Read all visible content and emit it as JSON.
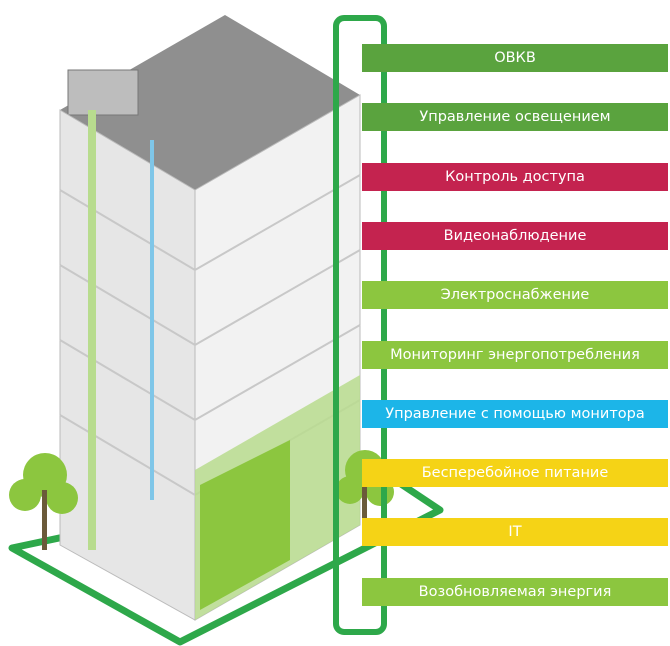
{
  "labels": [
    {
      "text": "ОВКВ",
      "color": "#5aa33e"
    },
    {
      "text": "Управление освещением",
      "color": "#5aa33e"
    },
    {
      "text": "Контроль доступа",
      "color": "#c4234f"
    },
    {
      "text": "Видеонаблюдение",
      "color": "#c4234f"
    },
    {
      "text": "Электроснабжение",
      "color": "#8cc63f"
    },
    {
      "text": "Мониторинг энергопотребления",
      "color": "#8cc63f"
    },
    {
      "text": "Управление с помощью монитора",
      "color": "#1cb5e8"
    },
    {
      "text": "Бесперебойное питание",
      "color": "#f5d316"
    },
    {
      "text": "IT",
      "color": "#f5d316"
    },
    {
      "text": "Возобновляемая энергия",
      "color": "#8cc63f"
    }
  ]
}
